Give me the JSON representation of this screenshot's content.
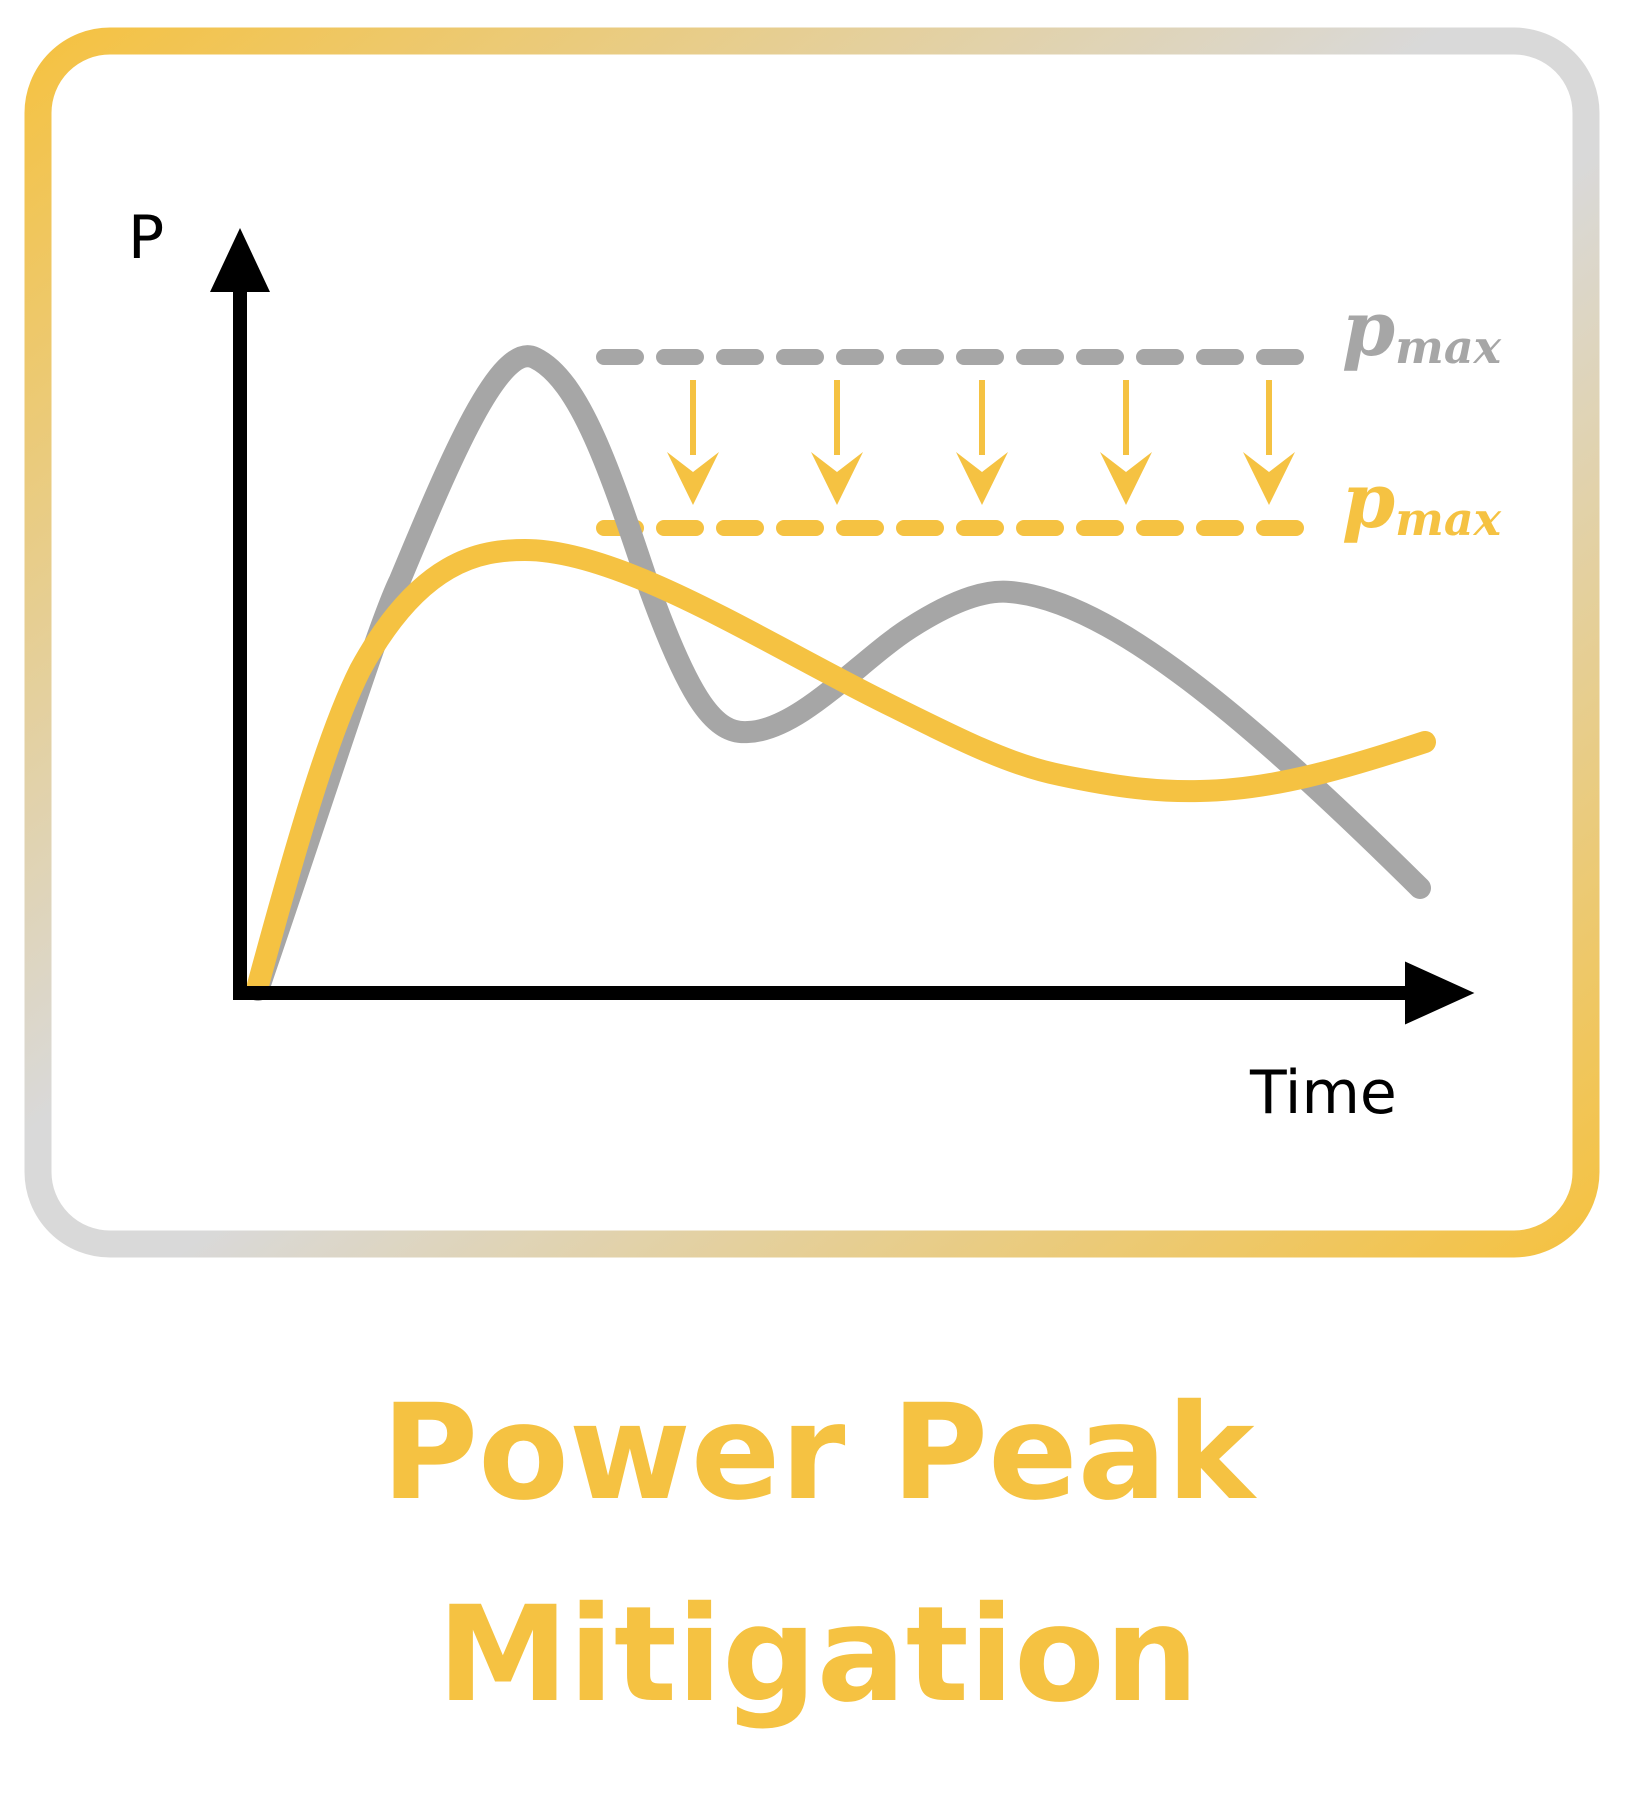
{
  "diagram": {
    "y_axis_label": "P",
    "x_axis_label": "Time",
    "original_limit": {
      "symbol": "p",
      "subscript": "max"
    },
    "reduced_limit": {
      "symbol": "p",
      "subscript": "max"
    },
    "caption": {
      "line1": "Power Peak",
      "line2": "Mitigation"
    }
  },
  "colors": {
    "accent": "#f5c242",
    "gray": "#a6a6a6",
    "axis": "#000000",
    "frame_gray": "#d9d9d9",
    "background": "#ffffff"
  }
}
